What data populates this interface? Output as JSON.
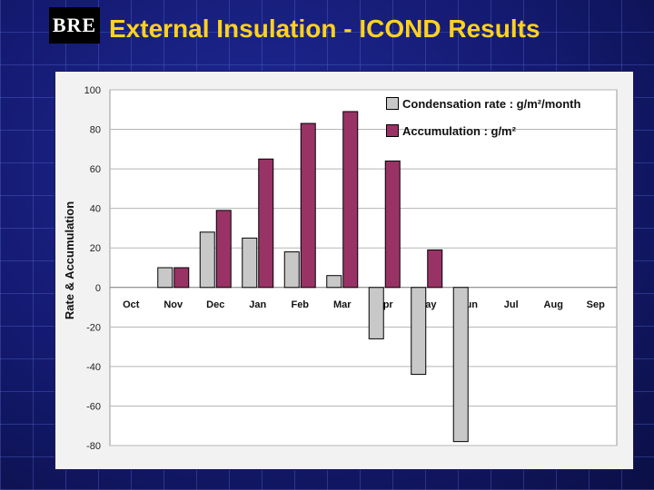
{
  "slide": {
    "logo_text": "BRE",
    "title": "External Insulation - ICOND Results"
  },
  "colors": {
    "background": "#14186a",
    "title": "#ffd21f",
    "condensation": "#c8c8c8",
    "accumulation": "#993366"
  },
  "chart_data": {
    "type": "bar",
    "title": "",
    "xlabel": "",
    "ylabel": "Rate & Accumulation",
    "ylim": [
      -80,
      100
    ],
    "yticks": [
      100,
      80,
      60,
      40,
      20,
      0,
      -20,
      -40,
      -60,
      -80
    ],
    "grid": "horizontal",
    "legend_position": "top-right",
    "categories": [
      "Oct",
      "Nov",
      "Dec",
      "Jan",
      "Feb",
      "Mar",
      "Apr",
      "May",
      "Jun",
      "Jul",
      "Aug",
      "Sep"
    ],
    "series": [
      {
        "name": "Condensation rate : g/m²/month",
        "values": [
          0,
          10,
          28,
          25,
          18,
          6,
          -26,
          -44,
          -78,
          0,
          0,
          0
        ]
      },
      {
        "name": "Accumulation : g/m²",
        "values": [
          0,
          10,
          39,
          65,
          83,
          89,
          64,
          19,
          0,
          0,
          0,
          0
        ]
      }
    ]
  }
}
